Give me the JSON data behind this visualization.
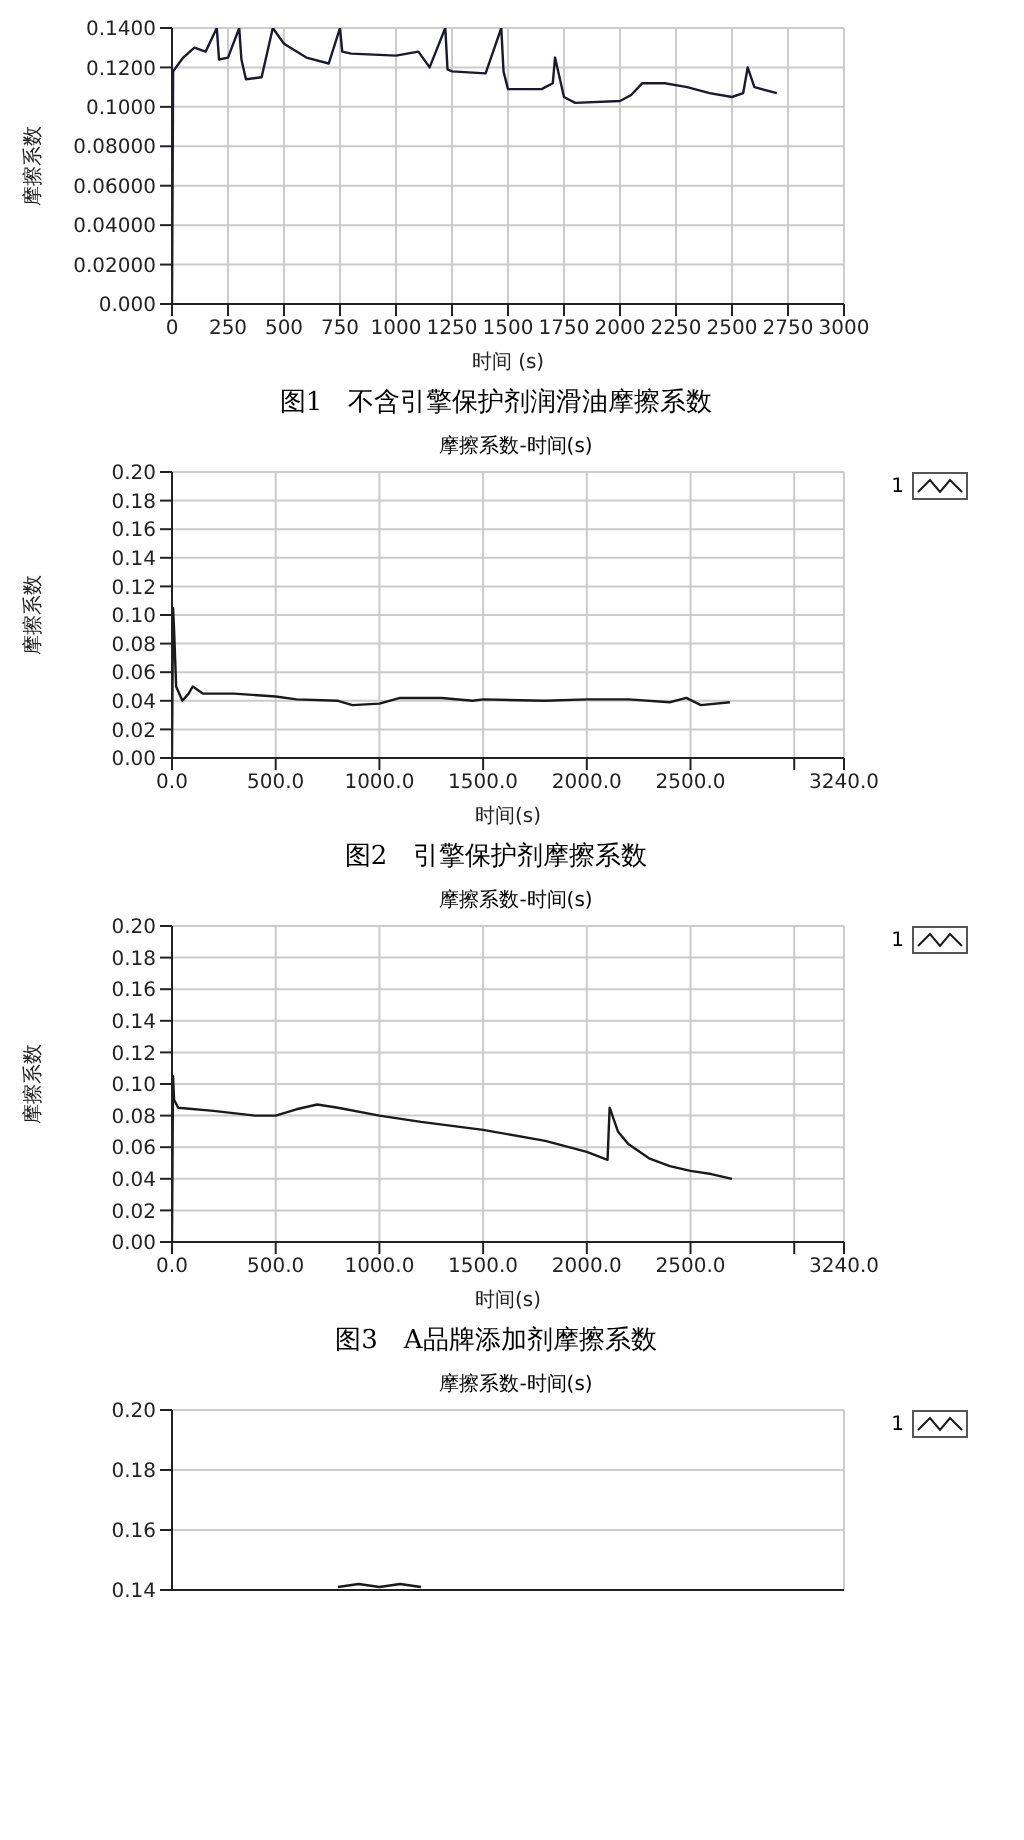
{
  "chart_data": [
    {
      "type": "line",
      "xlabel": "时间 (s)",
      "ylabel": "摩擦系数",
      "annotations": [
        "图1　不含引擎保护剂润滑油摩擦系数"
      ],
      "xlim": [
        0,
        3000
      ],
      "xticks": [
        0,
        250,
        500,
        750,
        1000,
        1250,
        1500,
        1750,
        2000,
        2250,
        2500,
        2750,
        3000
      ],
      "ylim": [
        0,
        0.14
      ],
      "yticks": [
        {
          "value": 0,
          "label": "0.000"
        },
        {
          "value": 0.02,
          "label": "0.02000"
        },
        {
          "value": 0.04,
          "label": "0.04000"
        },
        {
          "value": 0.06,
          "label": "0.06000"
        },
        {
          "value": 0.08,
          "label": "0.08000"
        },
        {
          "value": 0.1,
          "label": "0.1000"
        },
        {
          "value": 0.12,
          "label": "0.1200"
        },
        {
          "value": 0.14,
          "label": "0.1400"
        }
      ],
      "grid": true,
      "legend": false,
      "marker": "none",
      "line_style": "solid",
      "series": [
        {
          "color": "#1a1a2e",
          "x": [
            0,
            5,
            50,
            100,
            150,
            200,
            210,
            250,
            300,
            310,
            330,
            400,
            430,
            450,
            500,
            600,
            700,
            750,
            760,
            800,
            1000,
            1100,
            1150,
            1220,
            1230,
            1250,
            1400,
            1470,
            1480,
            1500,
            1650,
            1700,
            1710,
            1750,
            1800,
            2000,
            2050,
            2100,
            2200,
            2300,
            2400,
            2500,
            2550,
            2570,
            2600,
            2700
          ],
          "values": [
            0,
            0.118,
            0.125,
            0.13,
            0.128,
            0.14,
            0.124,
            0.125,
            0.14,
            0.124,
            0.114,
            0.115,
            0.13,
            0.14,
            0.132,
            0.125,
            0.122,
            0.14,
            0.128,
            0.127,
            0.126,
            0.128,
            0.12,
            0.14,
            0.119,
            0.118,
            0.117,
            0.14,
            0.118,
            0.109,
            0.109,
            0.112,
            0.125,
            0.105,
            0.102,
            0.103,
            0.106,
            0.112,
            0.112,
            0.11,
            0.107,
            0.105,
            0.107,
            0.12,
            0.11,
            0.107
          ]
        }
      ]
    },
    {
      "type": "line",
      "title": "摩擦系数-时间(s)",
      "xlabel": "时间(s)",
      "ylabel": "摩擦系数",
      "annotations": [
        "图2　引擎保护剂摩擦系数"
      ],
      "xlim": [
        0,
        3240
      ],
      "xticks": [
        {
          "value": 0,
          "label": "0.0"
        },
        {
          "value": 500,
          "label": "500.0"
        },
        {
          "value": 1000,
          "label": "1000.0"
        },
        {
          "value": 1500,
          "label": "1500.0"
        },
        {
          "value": 2000,
          "label": "2000.0"
        },
        {
          "value": 2500,
          "label": "2500.0"
        },
        {
          "value": 3000,
          "label": null
        },
        {
          "value": 3240,
          "label": "3240.0"
        }
      ],
      "ylim": [
        0,
        0.2
      ],
      "yticks": [
        {
          "value": 0,
          "label": "0.00"
        },
        {
          "value": 0.02,
          "label": "0.02"
        },
        {
          "value": 0.04,
          "label": "0.04"
        },
        {
          "value": 0.06,
          "label": "0.06"
        },
        {
          "value": 0.08,
          "label": "0.08"
        },
        {
          "value": 0.1,
          "label": "0.10"
        },
        {
          "value": 0.12,
          "label": "0.12"
        },
        {
          "value": 0.14,
          "label": "0.14"
        },
        {
          "value": 0.16,
          "label": "0.16"
        },
        {
          "value": 0.18,
          "label": "0.18"
        },
        {
          "value": 0.2,
          "label": "0.20"
        }
      ],
      "grid": true,
      "legend": "top right",
      "marker": "none",
      "line_style": "solid",
      "series": [
        {
          "name": "1",
          "color": "#1a1a1a",
          "x": [
            0,
            5,
            10,
            20,
            50,
            80,
            100,
            150,
            300,
            500,
            600,
            800,
            870,
            1000,
            1100,
            1300,
            1450,
            1500,
            1800,
            2000,
            2200,
            2400,
            2480,
            2550,
            2690
          ],
          "values": [
            0,
            0.105,
            0.09,
            0.05,
            0.04,
            0.045,
            0.05,
            0.045,
            0.045,
            0.043,
            0.041,
            0.04,
            0.037,
            0.038,
            0.042,
            0.042,
            0.04,
            0.041,
            0.04,
            0.041,
            0.041,
            0.039,
            0.042,
            0.037,
            0.039
          ]
        }
      ]
    },
    {
      "type": "line",
      "title": "摩擦系数-时间(s)",
      "xlabel": "时间(s)",
      "ylabel": "摩擦系数",
      "annotations": [
        "图3　A品牌添加剂摩擦系数"
      ],
      "xlim": [
        0,
        3240
      ],
      "xticks": [
        {
          "value": 0,
          "label": "0.0"
        },
        {
          "value": 500,
          "label": "500.0"
        },
        {
          "value": 1000,
          "label": "1000.0"
        },
        {
          "value": 1500,
          "label": "1500.0"
        },
        {
          "value": 2000,
          "label": "2000.0"
        },
        {
          "value": 2500,
          "label": "2500.0"
        },
        {
          "value": 3000,
          "label": null
        },
        {
          "value": 3240,
          "label": "3240.0"
        }
      ],
      "ylim": [
        0,
        0.2
      ],
      "yticks": [
        {
          "value": 0,
          "label": "0.00"
        },
        {
          "value": 0.02,
          "label": "0.02"
        },
        {
          "value": 0.04,
          "label": "0.04"
        },
        {
          "value": 0.06,
          "label": "0.06"
        },
        {
          "value": 0.08,
          "label": "0.08"
        },
        {
          "value": 0.1,
          "label": "0.10"
        },
        {
          "value": 0.12,
          "label": "0.12"
        },
        {
          "value": 0.14,
          "label": "0.14"
        },
        {
          "value": 0.16,
          "label": "0.16"
        },
        {
          "value": 0.18,
          "label": "0.18"
        },
        {
          "value": 0.2,
          "label": "0.20"
        }
      ],
      "grid": true,
      "legend": "top right",
      "marker": "none",
      "line_style": "solid",
      "series": [
        {
          "name": "1",
          "color": "#1a1a1a",
          "x": [
            0,
            5,
            10,
            30,
            200,
            400,
            500,
            600,
            700,
            800,
            1000,
            1200,
            1500,
            1800,
            2000,
            2100,
            2110,
            2150,
            2200,
            2300,
            2400,
            2500,
            2600,
            2700
          ],
          "values": [
            0,
            0.105,
            0.09,
            0.085,
            0.083,
            0.08,
            0.08,
            0.084,
            0.087,
            0.085,
            0.08,
            0.076,
            0.071,
            0.064,
            0.057,
            0.052,
            0.085,
            0.07,
            0.062,
            0.053,
            0.048,
            0.045,
            0.043,
            0.04
          ]
        }
      ]
    },
    {
      "type": "line",
      "title": "摩擦系数-时间(s)",
      "xlim": [
        0,
        3240
      ],
      "ylim": [
        0.14,
        0.2
      ],
      "yticks": [
        {
          "value": 0.14,
          "label": "0.14"
        },
        {
          "value": 0.16,
          "label": "0.16"
        },
        {
          "value": 0.18,
          "label": "0.18"
        },
        {
          "value": 0.2,
          "label": "0.20"
        }
      ],
      "tick_labels": "y",
      "grid": true,
      "legend": "top right",
      "marker": "none",
      "line_style": "solid",
      "series": [
        {
          "name": "1",
          "color": "#1a1a1a",
          "x": [
            800,
            900,
            1000,
            1100,
            1200
          ],
          "values": [
            0.141,
            0.142,
            0.141,
            0.142,
            0.141
          ]
        }
      ]
    }
  ]
}
